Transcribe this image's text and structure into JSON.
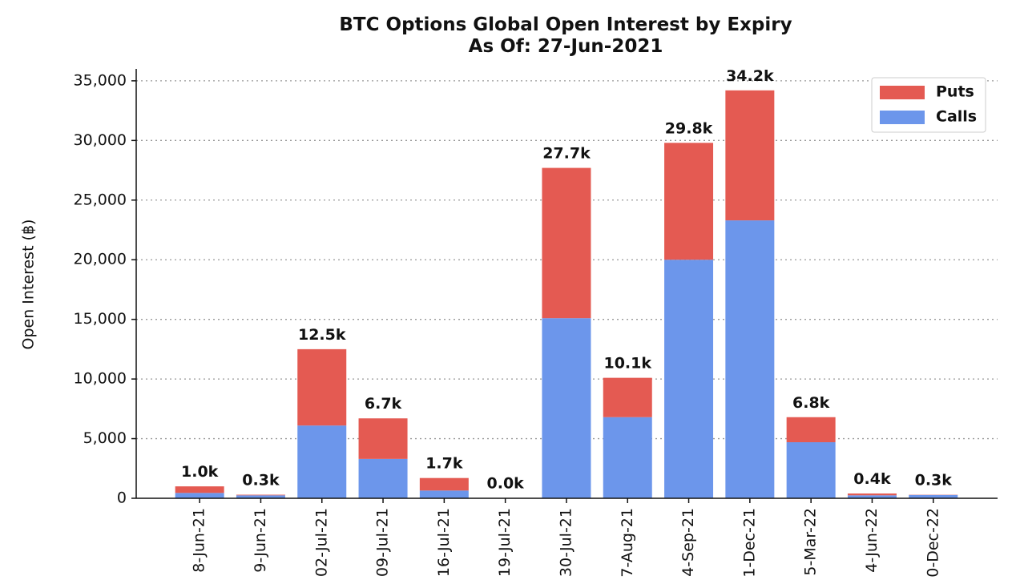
{
  "chart_data": {
    "type": "stacked_bar",
    "title": "BTC Options Global Open Interest by Expiry",
    "subtitle": "As Of: 27-Jun-2021",
    "y_label": "Open Interest (฿)",
    "categories": [
      "8-Jun-21",
      "9-Jun-21",
      "02-Jul-21",
      "09-Jul-21",
      "16-Jul-21",
      "19-Jul-21",
      "30-Jul-21",
      "7-Aug-21",
      "4-Sep-21",
      "1-Dec-21",
      "5-Mar-22",
      "4-Jun-22",
      "0-Dec-22"
    ],
    "series": [
      {
        "name": "Calls",
        "color": "#6c96eb",
        "values": [
          450,
          250,
          6100,
          3300,
          650,
          10,
          15100,
          6800,
          20000,
          23300,
          4700,
          250,
          280
        ]
      },
      {
        "name": "Puts",
        "color": "#e45a52",
        "values": [
          550,
          50,
          6400,
          3400,
          1050,
          10,
          12600,
          3300,
          9800,
          10900,
          2100,
          150,
          20
        ]
      }
    ],
    "total_labels": [
      "1.0k",
      "0.3k",
      "12.5k",
      "6.7k",
      "1.7k",
      "0.0k",
      "27.7k",
      "10.1k",
      "29.8k",
      "34.2k",
      "6.8k",
      "0.4k",
      "0.3k"
    ],
    "ylim": [
      0,
      36000
    ],
    "yticks": [
      0,
      {
        "value": 5000,
        "label": "5,000"
      },
      {
        "value": 10000,
        "label": "10,000"
      },
      {
        "value": 15000,
        "label": "15,000"
      },
      {
        "value": 20000,
        "label": "20,000"
      },
      {
        "value": 25000,
        "label": "25,000"
      },
      {
        "value": 30000,
        "label": "30,000"
      },
      {
        "value": 35000,
        "label": "35,000"
      }
    ],
    "grid": true,
    "legend": "upper right"
  }
}
